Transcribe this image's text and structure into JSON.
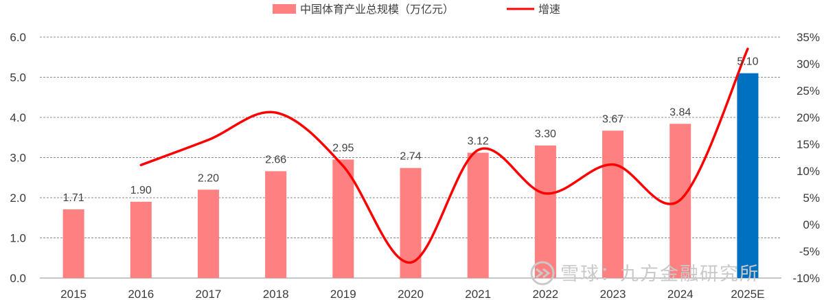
{
  "chart_data": {
    "type": "bar",
    "categories": [
      "2015",
      "2016",
      "2017",
      "2018",
      "2019",
      "2020",
      "2021",
      "2022",
      "2023",
      "2024",
      "2025E"
    ],
    "series": [
      {
        "name": "中国体育产业总规模（万亿元）",
        "type": "bar",
        "axis": "left",
        "values": [
          1.71,
          1.9,
          2.2,
          2.66,
          2.95,
          2.74,
          3.12,
          3.3,
          3.67,
          3.84,
          5.1
        ],
        "labels": [
          "1.71",
          "1.90",
          "2.20",
          "2.66",
          "2.95",
          "2.74",
          "3.12",
          "3.30",
          "3.67",
          "3.84",
          "5.10"
        ],
        "color": "#FF8080",
        "highlight": {
          "category": "2025E",
          "color": "#0070C0"
        }
      },
      {
        "name": "增速",
        "type": "line",
        "axis": "right",
        "smooth": true,
        "values": [
          null,
          11.1,
          15.8,
          20.9,
          10.9,
          -7.1,
          13.9,
          5.8,
          11.2,
          4.6,
          32.8
        ],
        "color": "#FF0000"
      }
    ],
    "y_left": {
      "min": 0,
      "max": 6,
      "ticks": [
        "0.0",
        "1.0",
        "2.0",
        "3.0",
        "4.0",
        "5.0",
        "6.0"
      ]
    },
    "y_right": {
      "min": -10,
      "max": 35,
      "ticks": [
        "-10%",
        "-5%",
        "0%",
        "5%",
        "10%",
        "15%",
        "20%",
        "25%",
        "30%",
        "35%"
      ]
    },
    "grid": "horizontal-dashed",
    "legend": "top-center",
    "watermark": "雪球：九方金融研究所"
  }
}
